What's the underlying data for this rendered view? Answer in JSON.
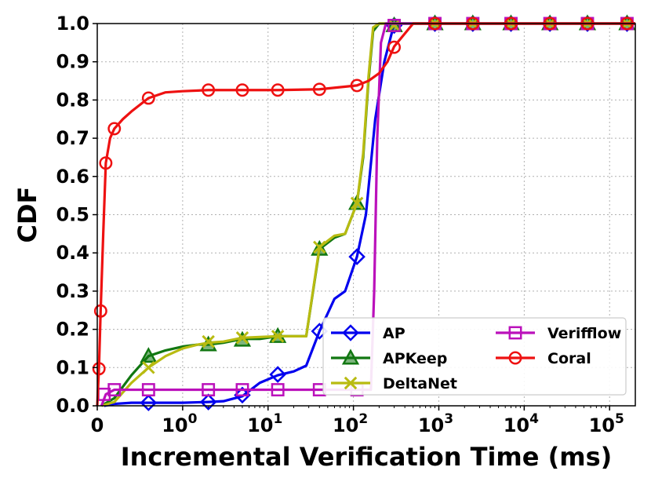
{
  "chart_data": {
    "type": "line",
    "xlabel": "Incremental Verification Time (ms)",
    "ylabel": "CDF",
    "xscale": "symlog",
    "xlim": [
      0,
      200000
    ],
    "ylim": [
      0,
      1.0
    ],
    "grid": true,
    "legend_position": "lower-right",
    "x_ticks": [
      {
        "value": 0,
        "label": "0"
      },
      {
        "value": 1,
        "base": "10",
        "exp": "0"
      },
      {
        "value": 10,
        "base": "10",
        "exp": "1"
      },
      {
        "value": 100,
        "base": "10",
        "exp": "2"
      },
      {
        "value": 1000,
        "base": "10",
        "exp": "3"
      },
      {
        "value": 10000,
        "base": "10",
        "exp": "4"
      },
      {
        "value": 100000,
        "base": "10",
        "exp": "5"
      }
    ],
    "y_ticks": [
      {
        "value": 0.0,
        "label": "0.0"
      },
      {
        "value": 0.1,
        "label": "0.1"
      },
      {
        "value": 0.2,
        "label": "0.2"
      },
      {
        "value": 0.3,
        "label": "0.3"
      },
      {
        "value": 0.4,
        "label": "0.4"
      },
      {
        "value": 0.5,
        "label": "0.5"
      },
      {
        "value": 0.6,
        "label": "0.6"
      },
      {
        "value": 0.7,
        "label": "0.7"
      },
      {
        "value": 0.8,
        "label": "0.8"
      },
      {
        "value": 0.9,
        "label": "0.9"
      },
      {
        "value": 1.0,
        "label": "1.0"
      }
    ],
    "series": [
      {
        "name": "AP",
        "color": "#0000ee",
        "marker": "diamond",
        "x": [
          0.08,
          0.2,
          0.4,
          0.6,
          1,
          2,
          3,
          5,
          8,
          13,
          20,
          28,
          40,
          60,
          80,
          110,
          140,
          180,
          230,
          300,
          500,
          900,
          3000,
          8000,
          25000,
          70000,
          200000
        ],
        "y": [
          0.0,
          0.005,
          0.008,
          0.008,
          0.008,
          0.01,
          0.012,
          0.025,
          0.06,
          0.08,
          0.09,
          0.105,
          0.195,
          0.28,
          0.3,
          0.39,
          0.5,
          0.75,
          0.9,
          1.0,
          1.0,
          1.0,
          1.0,
          1.0,
          1.0,
          1.0,
          1.0
        ],
        "marker_x": [
          0.6,
          2,
          5,
          13,
          40,
          110,
          300,
          900,
          2500,
          7000,
          20000,
          55000,
          160000
        ],
        "marker_y": [
          0.008,
          0.01,
          0.028,
          0.082,
          0.195,
          0.39,
          0.995,
          1.0,
          1.0,
          1.0,
          1.0,
          1.0,
          1.0
        ]
      },
      {
        "name": "APKeep",
        "color": "#117711",
        "marker": "triangle",
        "x": [
          0.05,
          0.2,
          0.4,
          0.6,
          0.8,
          1,
          1.5,
          2,
          3,
          5,
          8,
          13,
          20,
          28,
          40,
          60,
          80,
          110,
          130,
          150,
          170,
          200,
          300,
          500,
          900,
          3000,
          8000,
          25000,
          70000,
          200000
        ],
        "y": [
          0.0,
          0.02,
          0.08,
          0.13,
          0.145,
          0.155,
          0.16,
          0.16,
          0.165,
          0.175,
          0.175,
          0.182,
          0.182,
          0.182,
          0.41,
          0.44,
          0.45,
          0.53,
          0.65,
          0.85,
          0.98,
          1.0,
          1.0,
          1.0,
          1.0,
          1.0,
          1.0,
          1.0,
          1.0,
          1.0
        ],
        "marker_x": [
          0.6,
          2,
          5,
          13,
          40,
          110,
          300,
          900,
          2500,
          7000,
          20000,
          55000,
          160000
        ],
        "marker_y": [
          0.13,
          0.16,
          0.172,
          0.182,
          0.41,
          0.53,
          0.995,
          1.0,
          1.0,
          1.0,
          1.0,
          1.0,
          1.0
        ]
      },
      {
        "name": "DeltaNet",
        "color": "#b8bb11",
        "marker": "x",
        "x": [
          0.05,
          0.2,
          0.4,
          0.6,
          0.8,
          1,
          1.5,
          2,
          3,
          5,
          8,
          13,
          20,
          28,
          40,
          60,
          80,
          110,
          130,
          150,
          170,
          200,
          300,
          500,
          900,
          3000,
          8000,
          25000,
          70000,
          200000
        ],
        "y": [
          0.0,
          0.01,
          0.06,
          0.1,
          0.13,
          0.15,
          0.16,
          0.165,
          0.168,
          0.178,
          0.18,
          0.182,
          0.182,
          0.182,
          0.415,
          0.445,
          0.45,
          0.53,
          0.66,
          0.86,
          0.99,
          1.0,
          1.0,
          1.0,
          1.0,
          1.0,
          1.0,
          1.0,
          1.0,
          1.0
        ],
        "marker_x": [
          0.6,
          2,
          5,
          13,
          40,
          110,
          300,
          900,
          2500,
          7000,
          20000,
          55000,
          160000
        ],
        "marker_y": [
          0.1,
          0.168,
          0.178,
          0.182,
          0.415,
          0.53,
          0.995,
          1.0,
          1.0,
          1.0,
          1.0,
          1.0,
          1.0
        ]
      },
      {
        "name": "Verifflow",
        "color": "#bb11bb",
        "marker": "square",
        "x": [
          0.05,
          0.1,
          0.2,
          0.6,
          2,
          5,
          13,
          40,
          110,
          160,
          175,
          190,
          210,
          240,
          300,
          500,
          900,
          3000,
          8000,
          25000,
          70000,
          200000
        ],
        "y": [
          0.0,
          0.03,
          0.042,
          0.042,
          0.042,
          0.042,
          0.042,
          0.042,
          0.042,
          0.042,
          0.3,
          0.7,
          0.95,
          1.0,
          1.0,
          1.0,
          1.0,
          1.0,
          1.0,
          1.0,
          1.0,
          1.0
        ],
        "marker_x": [
          0.08,
          0.2,
          0.6,
          2,
          5,
          13,
          40,
          110,
          300,
          900,
          2500,
          7000,
          20000,
          55000,
          160000
        ],
        "marker_y": [
          0.03,
          0.042,
          0.042,
          0.042,
          0.042,
          0.042,
          0.042,
          0.042,
          0.995,
          1.0,
          1.0,
          1.0,
          1.0,
          1.0,
          1.0
        ]
      },
      {
        "name": "Coral",
        "color": "#ee1111",
        "marker": "circle",
        "x": [
          0.0,
          0.02,
          0.04,
          0.07,
          0.1,
          0.15,
          0.2,
          0.3,
          0.4,
          0.6,
          0.8,
          1,
          2,
          5,
          13,
          40,
          110,
          150,
          200,
          250,
          300,
          500,
          900,
          3000,
          8000,
          25000,
          70000,
          200000
        ],
        "y": [
          0.0,
          0.1,
          0.25,
          0.45,
          0.635,
          0.7,
          0.725,
          0.75,
          0.77,
          0.805,
          0.82,
          0.823,
          0.826,
          0.826,
          0.826,
          0.828,
          0.838,
          0.85,
          0.87,
          0.9,
          0.94,
          1.0,
          1.0,
          1.0,
          1.0,
          1.0,
          1.0,
          1.0
        ],
        "marker_x": [
          0.02,
          0.04,
          0.1,
          0.2,
          0.6,
          2,
          5,
          13,
          40,
          110,
          300,
          900,
          2500,
          7000,
          20000,
          55000,
          160000
        ],
        "marker_y": [
          0.097,
          0.248,
          0.635,
          0.725,
          0.805,
          0.826,
          0.826,
          0.826,
          0.828,
          0.838,
          0.938,
          1.0,
          1.0,
          1.0,
          1.0,
          1.0,
          1.0
        ]
      }
    ]
  }
}
